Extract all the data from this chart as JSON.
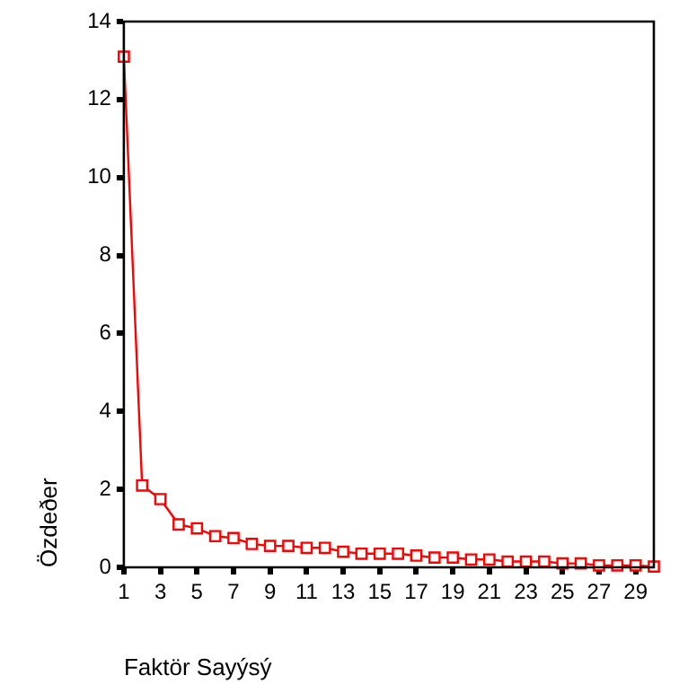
{
  "chart_data": {
    "type": "line",
    "xlabel": "Faktör Sayýsý",
    "ylabel": "Özdeðer",
    "x": [
      1,
      2,
      3,
      4,
      5,
      6,
      7,
      8,
      9,
      10,
      11,
      12,
      13,
      14,
      15,
      16,
      17,
      18,
      19,
      20,
      21,
      22,
      23,
      24,
      25,
      26,
      27,
      28,
      29,
      30
    ],
    "series": [
      {
        "color": "#ff0000",
        "values": [
          13.1,
          2.1,
          1.75,
          1.1,
          1.0,
          0.8,
          0.75,
          0.6,
          0.55,
          0.55,
          0.5,
          0.5,
          0.4,
          0.35,
          0.35,
          0.35,
          0.3,
          0.25,
          0.25,
          0.2,
          0.2,
          0.15,
          0.15,
          0.15,
          0.1,
          0.1,
          0.05,
          0.05,
          0.05,
          0.02
        ]
      }
    ],
    "xlim": [
      1,
      30
    ],
    "xticks": [
      1,
      3,
      5,
      7,
      9,
      11,
      13,
      15,
      17,
      19,
      21,
      23,
      25,
      27,
      29
    ],
    "ylim": [
      0,
      14
    ],
    "yticks": [
      0,
      2,
      4,
      6,
      8,
      10,
      12,
      14
    ],
    "grid": false,
    "legend": false,
    "marker": "square",
    "line_style": "solid"
  }
}
